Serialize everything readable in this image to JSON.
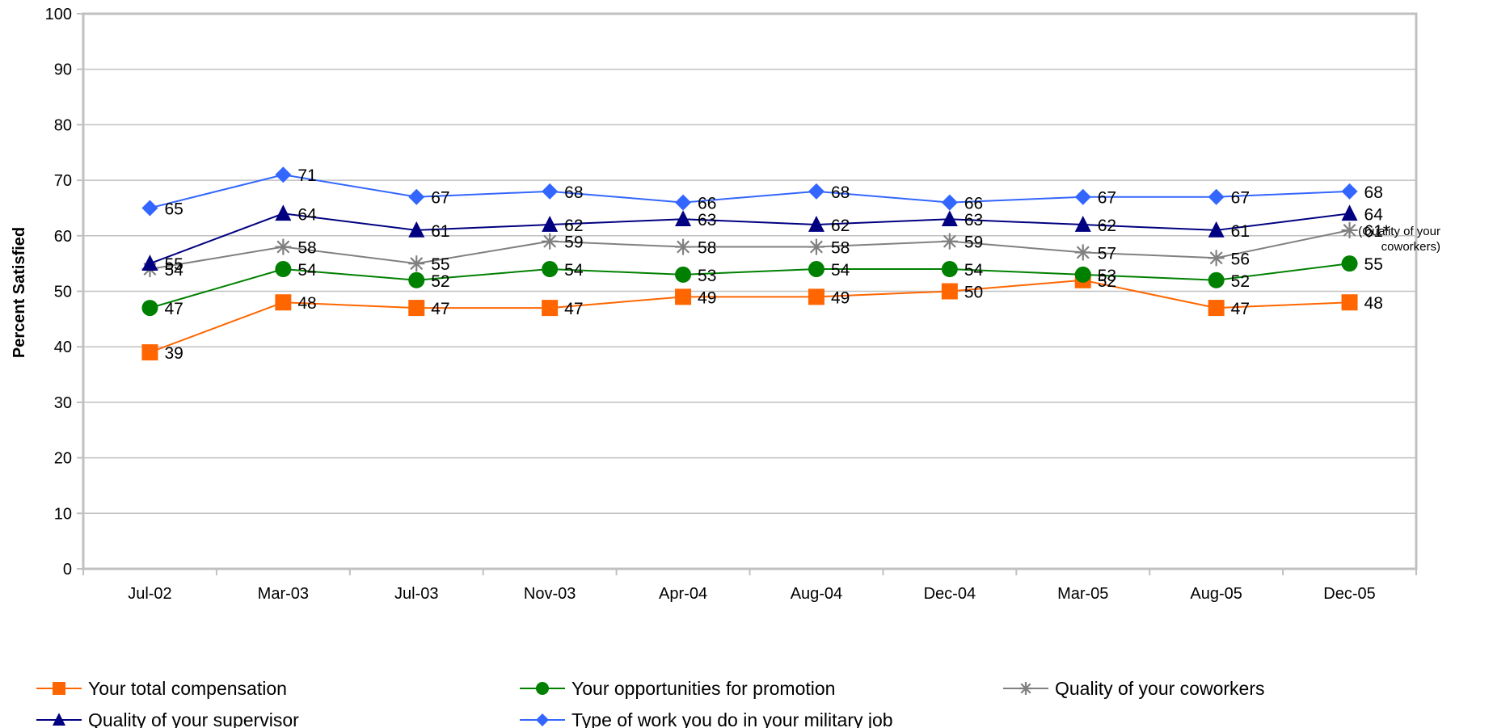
{
  "chart_data": {
    "type": "line",
    "title": "",
    "xlabel": "",
    "ylabel": "Percent Satisfied",
    "ylim": [
      0,
      100
    ],
    "yticks": [
      0,
      10,
      20,
      30,
      40,
      50,
      60,
      70,
      80,
      90,
      100
    ],
    "categories": [
      "Jul-02",
      "Mar-03",
      "Jul-03",
      "Nov-03",
      "Apr-04",
      "Aug-04",
      "Dec-04",
      "Mar-05",
      "Aug-05",
      "Dec-05"
    ],
    "grid": true,
    "legend_position": "bottom",
    "series": [
      {
        "name": "Your total compensation",
        "color": "#FF6600",
        "marker": "square",
        "values": [
          39,
          48,
          47,
          47,
          49,
          49,
          50,
          52,
          47,
          48
        ]
      },
      {
        "name": "Your opportunities for promotion",
        "color": "#008000",
        "marker": "circle",
        "values": [
          47,
          54,
          52,
          54,
          53,
          54,
          54,
          53,
          52,
          55
        ]
      },
      {
        "name": "Quality of your coworkers",
        "color": "#808080",
        "marker": "asterisk",
        "values": [
          54,
          58,
          55,
          59,
          58,
          58,
          59,
          57,
          56,
          61
        ]
      },
      {
        "name": "Quality of your supervisor",
        "color": "#000080",
        "marker": "triangle",
        "values": [
          55,
          64,
          61,
          62,
          63,
          62,
          63,
          62,
          61,
          64
        ]
      },
      {
        "name": "Type of work you do in your military job",
        "color": "#3366FF",
        "marker": "diamond",
        "values": [
          65,
          71,
          67,
          68,
          66,
          68,
          66,
          67,
          67,
          68
        ]
      }
    ],
    "data_labels": [
      [
        "39",
        "48",
        "47",
        "47",
        "49",
        "49",
        "50",
        "52",
        "47",
        "48"
      ],
      [
        "47",
        "54",
        "52",
        "54",
        "53",
        "54",
        "54",
        "53",
        "52",
        "55"
      ],
      [
        "54",
        "58",
        "55",
        "59",
        "58",
        "58",
        "59",
        "57",
        "56",
        "61*"
      ],
      [
        "55",
        "64",
        "61",
        "62",
        "63",
        "62",
        "63",
        "62",
        "61",
        "64"
      ],
      [
        "65",
        "71",
        "67",
        "68",
        "66",
        "68",
        "66",
        "67",
        "67",
        "68"
      ]
    ],
    "annotation": [
      "(Quality of your",
      "coworkers)"
    ]
  }
}
